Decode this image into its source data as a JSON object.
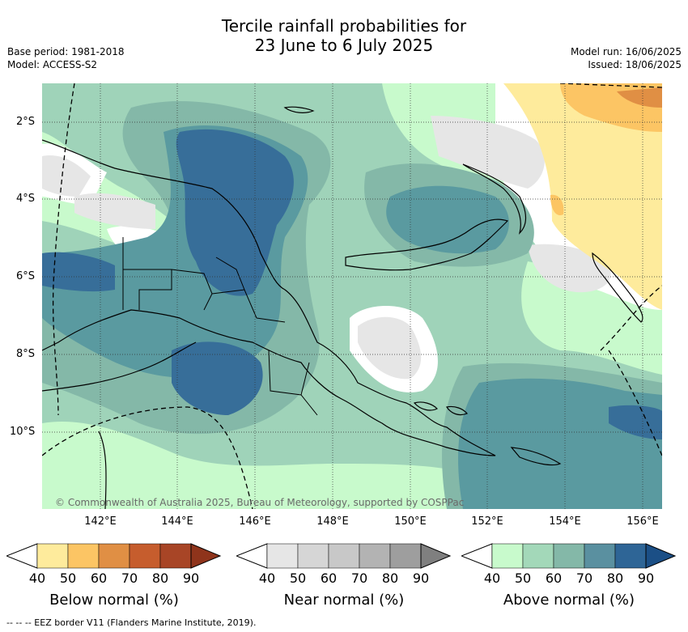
{
  "title": {
    "line1": "Tercile rainfall probabilities for",
    "line2": "23 June to 6 July 2025"
  },
  "meta": {
    "base_period": "Base period: 1981-2018",
    "model": "Model: ACCESS-S2",
    "model_run": "Model run: 16/06/2025",
    "issued": "Issued: 18/06/2025"
  },
  "map": {
    "lat_labels": [
      "2°S",
      "4°S",
      "6°S",
      "8°S",
      "10°S"
    ],
    "lon_labels": [
      "142°E",
      "144°E",
      "146°E",
      "148°E",
      "150°E",
      "152°E",
      "154°E",
      "156°E"
    ],
    "copyright": "© Commonwealth of Australia 2025, Bureau of Meteorology, supported by COSPPac",
    "colors": {
      "background_zero": "#ffffff",
      "above_40": "#c8facc",
      "above_50": "#9fd3b9",
      "above_60": "#84b8a8",
      "above_70": "#5a9aa0",
      "above_80": "#376e99",
      "near_40": "#e6e6e6",
      "below_40": "#feeb9c",
      "below_50": "#fcc564",
      "below_60": "#e08f44"
    }
  },
  "colorbars": [
    {
      "title": "Below normal (%)",
      "ticks": [
        "40",
        "50",
        "60",
        "70",
        "80",
        "90"
      ],
      "colors": [
        "#ffffff",
        "#feeb9c",
        "#fcc564",
        "#e08f44",
        "#c65d2d",
        "#a84526",
        "#8f341b"
      ]
    },
    {
      "title": "Near normal (%)",
      "ticks": [
        "40",
        "50",
        "60",
        "70",
        "80",
        "90"
      ],
      "colors": [
        "#ffffff",
        "#e6e6e6",
        "#d6d6d6",
        "#c8c8c8",
        "#b3b3b3",
        "#9e9e9e",
        "#7f7f7f"
      ]
    },
    {
      "title": "Above normal (%)",
      "ticks": [
        "40",
        "50",
        "60",
        "70",
        "80",
        "90"
      ],
      "colors": [
        "#ffffff",
        "#c8facc",
        "#a3d8b9",
        "#84b8a8",
        "#5a90a0",
        "#2e6596",
        "#1b4f86"
      ]
    }
  ],
  "footer": "--  --  -- EEZ border V11 (Flanders Marine Institute, 2019)."
}
